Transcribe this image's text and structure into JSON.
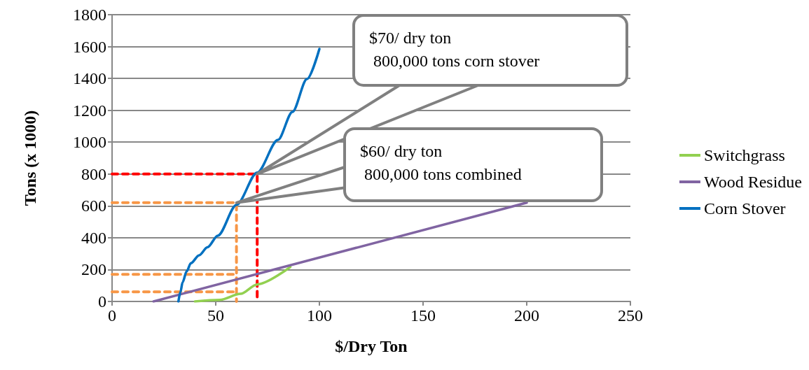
{
  "chart_data": {
    "type": "line",
    "xlabel": "$/Dry Ton",
    "ylabel": "Tons (x 1000)",
    "xlim": [
      0,
      250
    ],
    "xticks": [
      0,
      50,
      100,
      150,
      200,
      250
    ],
    "ylim": [
      0,
      1800
    ],
    "yticks": [
      0,
      200,
      400,
      600,
      800,
      1000,
      1200,
      1400,
      1600,
      1800
    ],
    "grid": "y",
    "legend": "right",
    "marker": "none",
    "series": [
      {
        "name": "Switchgrass",
        "color": "#92d050",
        "x": [
          40,
          52,
          62,
          70,
          86
        ],
        "values": [
          0,
          10,
          48,
          107,
          217
        ]
      },
      {
        "name": "Wood Residue",
        "color": "#8064a2",
        "x": [
          20,
          200
        ],
        "values": [
          0,
          620
        ]
      },
      {
        "name": "Corn Stover",
        "color": "#0070c0",
        "x": [
          32,
          33,
          34,
          36,
          38,
          42,
          46,
          51,
          60,
          70,
          80,
          87,
          94,
          100
        ],
        "values": [
          0,
          60,
          120,
          190,
          240,
          290,
          340,
          413,
          606,
          809,
          1014,
          1190,
          1396,
          1585
        ]
      },
      {
        "color": "#ff0000",
        "line_style": "dashed",
        "x": [
          0,
          70,
          70
        ],
        "values": [
          800,
          800,
          0
        ]
      },
      {
        "color": "#f79646",
        "line_style": "dashed",
        "x": [
          0,
          60,
          60
        ],
        "values": [
          620,
          620,
          0
        ]
      },
      {
        "color": "#f79646",
        "line_style": "dashed",
        "x": [
          0,
          60
        ],
        "values": [
          170,
          170
        ]
      },
      {
        "color": "#f79646",
        "line_style": "dashed",
        "x": [
          0,
          60
        ],
        "values": [
          60,
          60
        ]
      }
    ],
    "annotations": [
      {
        "text": "$70/ dry ton\n 800,000 tons corn stover",
        "x": 70,
        "y": 800
      },
      {
        "text": "$60/ dry ton\n 800,000 tons combined",
        "x": 60,
        "y": 620
      }
    ]
  }
}
